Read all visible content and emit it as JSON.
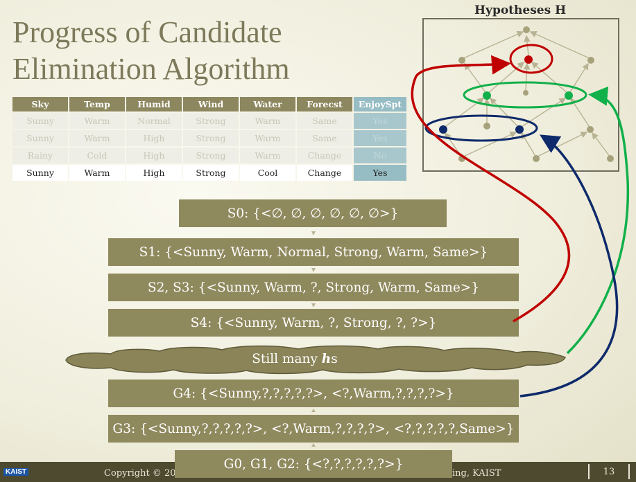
{
  "title": {
    "line1": "Progress of Candidate",
    "line2": "Elimination Algorithm"
  },
  "table": {
    "headers": [
      "Sky",
      "Temp",
      "Humid",
      "Wind",
      "Water",
      "Forecst",
      "EnjoySpt"
    ],
    "rows": [
      [
        "Sunny",
        "Warm",
        "Normal",
        "Strong",
        "Warm",
        "Same",
        "Yes"
      ],
      [
        "Sunny",
        "Warm",
        "High",
        "Strong",
        "Warm",
        "Same",
        "Yes"
      ],
      [
        "Rainy",
        "Cold",
        "High",
        "Strong",
        "Warm",
        "Change",
        "No"
      ],
      [
        "Sunny",
        "Warm",
        "High",
        "Strong",
        "Cool",
        "Change",
        "Yes"
      ]
    ]
  },
  "hypotheses_label": "Hypotheses H",
  "steps": {
    "s0": "S0: {<∅, ∅, ∅, ∅, ∅, ∅>}",
    "s1": "S1: {<Sunny, Warm, Normal, Strong, Warm, Same>}",
    "s23": "S2, S3: {<Sunny, Warm, ?, Strong, Warm, Same>}",
    "s4": "S4: {<Sunny, Warm, ?, Strong, ?, ?>}",
    "still_prefix": "Still many ",
    "still_h": "h",
    "still_suffix": "s",
    "g4": "G4: {<Sunny,?,?,?,?,?>, <?,Warm,?,?,?,?>}",
    "g3": "G3: {<Sunny,?,?,?,?,?>, <?,Warm,?,?,?,?>, <?,?,?,?,?,Same>}",
    "g012": "G0, G1, G2: {<?,?,?,?,?,?>}"
  },
  "footer": {
    "logo": "KAIST",
    "left": "Copyright © 20",
    "right": "ing, KAIST",
    "page": "13"
  },
  "colors": {
    "bar": "#8f895e",
    "specific": "#c00000",
    "middle": "#11b04a",
    "general": "#0e2a6b"
  }
}
